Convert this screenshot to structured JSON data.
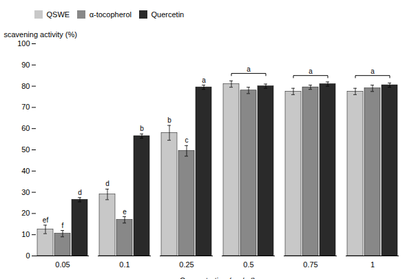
{
  "chart_data": {
    "type": "bar",
    "categories": [
      "0.05",
      "0.1",
      "0.25",
      "0.5",
      "0.75",
      "1"
    ],
    "series": [
      {
        "name": "QSWE",
        "color": "#c8c8c8",
        "values": [
          12.5,
          29.0,
          58.0,
          81.0,
          77.5,
          77.5
        ],
        "errors": [
          2.0,
          2.5,
          3.5,
          1.5,
          1.5,
          1.5
        ],
        "sig_labels": [
          "ef",
          "d",
          "b",
          null,
          null,
          null
        ]
      },
      {
        "name": "α-tocopherol",
        "color": "#888888",
        "values": [
          10.5,
          17.0,
          49.5,
          78.0,
          79.5,
          79.0
        ],
        "errors": [
          1.5,
          1.5,
          2.5,
          1.5,
          1.0,
          1.5
        ],
        "sig_labels": [
          "f",
          "e",
          "c",
          null,
          null,
          null
        ]
      },
      {
        "name": "Quercetin",
        "color": "#2a2a2a",
        "values": [
          26.5,
          56.5,
          79.5,
          80.0,
          81.0,
          80.5
        ],
        "errors": [
          1.0,
          1.0,
          1.0,
          1.0,
          1.0,
          1.0
        ],
        "sig_labels": [
          "d",
          "b",
          "a",
          null,
          null,
          null
        ]
      }
    ],
    "brackets": [
      {
        "category": "0.5",
        "y": 86,
        "label": "a"
      },
      {
        "category": "0.75",
        "y": 85,
        "label": "a"
      },
      {
        "category": "1",
        "y": 85,
        "label": "a"
      }
    ],
    "xlabel": "Concentration (mg/mℓ)",
    "ylabel": "scavening activity (%)",
    "ylim": [
      0,
      100
    ],
    "yticks": [
      0,
      10,
      20,
      30,
      40,
      50,
      60,
      70,
      80,
      90,
      100
    ],
    "grid": false
  }
}
